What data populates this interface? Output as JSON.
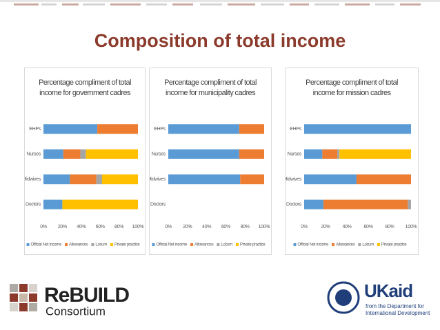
{
  "title": "Composition of total income",
  "logos": {
    "rebuild_1": "ReBUILD",
    "rebuild_2": "Consortium",
    "ukaid": "UKaid",
    "dfid_1": "from the Department for",
    "dfid_2": "International Development"
  },
  "chart_data": [
    {
      "type": "stacked-barh",
      "title": "Percentage compliment of total income for government cadres",
      "categories": [
        "EHPs",
        "Nurses",
        "Midwives",
        "Doctors"
      ],
      "series": [
        {
          "name": "Official Net income",
          "color": "#5b9bd5",
          "values": [
            57,
            21,
            28,
            20
          ]
        },
        {
          "name": "Allowances",
          "color": "#ed7d31",
          "values": [
            43,
            18,
            28,
            null
          ]
        },
        {
          "name": "Locum",
          "color": "#a5a5a5",
          "values": [
            null,
            6,
            6,
            null
          ]
        },
        {
          "name": "Private practice",
          "color": "#ffc000",
          "values": [
            null,
            55,
            38,
            80
          ]
        }
      ],
      "xlim": [
        0,
        100
      ],
      "xticks": [
        {
          "value": 0,
          "label": "0%"
        },
        {
          "value": 20,
          "label": "20%"
        },
        {
          "value": 40,
          "label": "40%"
        },
        {
          "value": 60,
          "label": "60%"
        },
        {
          "value": 80,
          "label": "80%"
        },
        {
          "value": 100,
          "label": "100%"
        }
      ],
      "legend": "bottom"
    },
    {
      "type": "stacked-barh",
      "title": "Percentage compliment of total income for municipality cadres",
      "categories": [
        "EHPs",
        "Nurses",
        "Midwives",
        "Doctors"
      ],
      "series": [
        {
          "name": "Official Net income",
          "color": "#5b9bd5",
          "values": [
            74,
            74,
            75,
            null
          ]
        },
        {
          "name": "Allowances",
          "color": "#ed7d31",
          "values": [
            26,
            26,
            25,
            null
          ]
        },
        {
          "name": "Locum",
          "color": "#a5a5a5",
          "values": [
            null,
            null,
            null,
            null
          ]
        },
        {
          "name": "Private practice",
          "color": "#ffc000",
          "values": [
            null,
            null,
            null,
            null
          ]
        }
      ],
      "xlim": [
        0,
        100
      ],
      "xticks": [
        {
          "value": 0,
          "label": "0%"
        },
        {
          "value": 20,
          "label": "20%"
        },
        {
          "value": 40,
          "label": "40%"
        },
        {
          "value": 60,
          "label": "60%"
        },
        {
          "value": 80,
          "label": "80%"
        },
        {
          "value": 100,
          "label": "100%"
        }
      ],
      "legend": "bottom"
    },
    {
      "type": "stacked-barh",
      "title": "Percentage compliment of total income for mission cadres",
      "categories": [
        "EHPs",
        "Nurses",
        "Midwives",
        "Doctors"
      ],
      "series": [
        {
          "name": "Official Net income",
          "color": "#5b9bd5",
          "values": [
            100,
            17,
            49,
            18
          ]
        },
        {
          "name": "Allowances",
          "color": "#ed7d31",
          "values": [
            null,
            14,
            51,
            79
          ]
        },
        {
          "name": "Locum",
          "color": "#a5a5a5",
          "values": [
            null,
            2,
            null,
            3
          ]
        },
        {
          "name": "Private practice",
          "color": "#ffc000",
          "values": [
            null,
            67,
            null,
            null
          ]
        }
      ],
      "xlim": [
        0,
        100
      ],
      "xticks": [
        {
          "value": 0,
          "label": "0%"
        },
        {
          "value": 20,
          "label": "20%"
        },
        {
          "value": 40,
          "label": "40%"
        },
        {
          "value": 60,
          "label": "60%"
        },
        {
          "value": 80,
          "label": "80%"
        },
        {
          "value": 100,
          "label": "100%"
        }
      ],
      "legend": "bottom"
    }
  ]
}
